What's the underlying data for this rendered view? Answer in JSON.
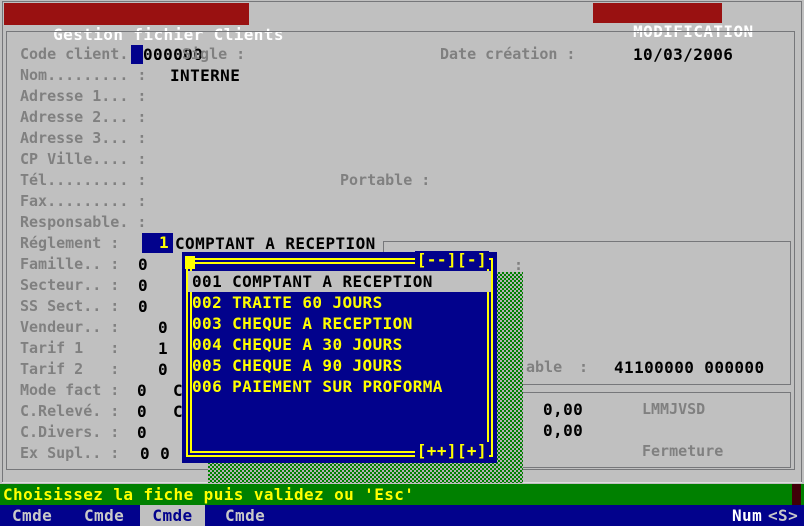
{
  "colors": {
    "background": "#c0c0c0",
    "title_red": "#991111",
    "navy": "#02028c",
    "green": "#008000",
    "yellow": "#ffff00",
    "label_gray": "#808080",
    "border_gray": "#76777a",
    "selected_gray": "#c0c0c0",
    "shadow_gray": "#b4b4b4",
    "dark_red_block": "#400008",
    "white": "#ffffff",
    "light_gray_text": "#c9c9c9",
    "text_black": "#000000"
  },
  "title_bar": {
    "app_title": "Gestion fichier Clients",
    "mode": "MODIFICATION"
  },
  "form": {
    "rows": [
      {
        "label": "Code client. :",
        "value": "000000"
      },
      {
        "label": "Nom......... :",
        "value": "INTERNE"
      },
      {
        "label": "Adresse 1... :",
        "value": ""
      },
      {
        "label": "Adresse 2... :",
        "value": ""
      },
      {
        "label": "Adresse 3... :",
        "value": ""
      },
      {
        "label": "CP Ville.... :",
        "value": ""
      },
      {
        "label": "Tél......... :",
        "value": ""
      },
      {
        "label": "Fax......... :",
        "value": ""
      },
      {
        "label": "Responsable. :",
        "value": ""
      },
      {
        "label": "Réglement :",
        "value": "1",
        "description": "COMPTANT A RECEPTION"
      },
      {
        "label": "Famille.. :",
        "value": "0"
      },
      {
        "label": "Secteur.. :",
        "value": "0"
      },
      {
        "label": "SS Sect.. :",
        "value": "0"
      },
      {
        "label": "Vendeur.. :",
        "value": "0"
      },
      {
        "label": "Tarif 1   :",
        "value": "1"
      },
      {
        "label": "Tarif 2   :",
        "value": "0"
      },
      {
        "label": "Mode fact :",
        "value": "0",
        "extra": "C"
      },
      {
        "label": "C.Relevé. :",
        "value": "0",
        "extra": "C"
      },
      {
        "label": "C.Divers. :",
        "value": "0"
      },
      {
        "label": "Ex Supl.. :",
        "value": "0 0"
      }
    ],
    "sigle_label": "Sigle :",
    "date_creation_label": "Date création :",
    "date_creation_value": "10/03/2006",
    "portable_label": "Portable :"
  },
  "right_panels": {
    "panel1": {
      "top_colon": ":",
      "account_label_tail": "able",
      "account_colon": ":",
      "account_value": "41100000 000000"
    },
    "panel2": {
      "amount1": "0,00",
      "schedule": "LMMJVSD",
      "amount2": "0,00",
      "closure": "Fermeture"
    }
  },
  "popup": {
    "scroll_up_marker": "[--][-]",
    "scroll_down_marker": "[++][+]",
    "selected_index": 0,
    "items": [
      "001 COMPTANT A RECEPTION",
      "002 TRAITE 60 JOURS",
      "003 CHEQUE A RECEPTION",
      "004 CHEQUE A 30 JOURS",
      "005 CHEQUE A 90 JOURS",
      "006 PAIEMENT SUR PROFORMA"
    ]
  },
  "status_bar": {
    "message": "Choisissez la fiche puis validez ou 'Esc'"
  },
  "command_bar": {
    "items": [
      "Cmde",
      "Cmde",
      "Cmde",
      "Cmde"
    ],
    "active_index": 2,
    "num_lock": "Num",
    "key_state": "<S>"
  }
}
